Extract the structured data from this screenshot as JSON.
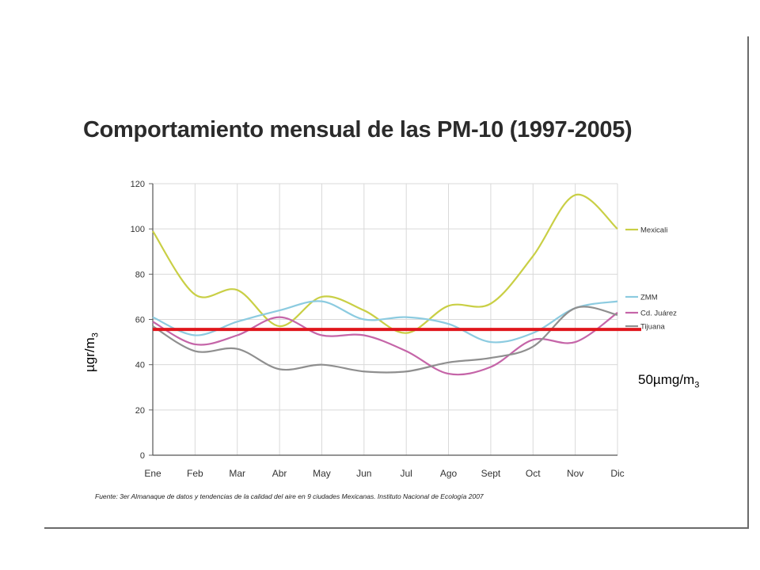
{
  "title": "Comportamiento mensual de las PM-10 (1997-2005)",
  "source": "Fuente: 3er Almanaque de datos y tendencias de la calidad del aire en 9 ciudades Mexicanas. Instituto Nacional de Ecología 2007",
  "ylabel": {
    "main": "µgr/m",
    "sub": "3"
  },
  "threshold_label": {
    "main": "50µmg/m",
    "sub": "3"
  },
  "colors": {
    "mexicali": "#c9cf45",
    "zmm": "#8ccbe0",
    "juarez": "#c565a8",
    "tijuana": "#8f8f8f",
    "threshold": "#e0161c"
  },
  "chart_data": {
    "type": "line",
    "title": "Comportamiento mensual de las PM-10 (1997-2005)",
    "xlabel": "",
    "ylabel": "µgr/m3",
    "categories": [
      "Ene",
      "Feb",
      "Mar",
      "Abr",
      "May",
      "Jun",
      "Jul",
      "Ago",
      "Sept",
      "Oct",
      "Nov",
      "Dic"
    ],
    "ylim": [
      0,
      120
    ],
    "yticks": [
      0,
      20,
      40,
      60,
      80,
      100,
      120
    ],
    "grid": true,
    "legend_position": "right",
    "series": [
      {
        "name": "Mexicali",
        "values": [
          99,
          71,
          73,
          57,
          70,
          64,
          54,
          66,
          67,
          88,
          115,
          100
        ]
      },
      {
        "name": "ZMM",
        "values": [
          61,
          53,
          59,
          64,
          68,
          60,
          61,
          58,
          50,
          54,
          65,
          68
        ]
      },
      {
        "name": "Cd. Juárez",
        "values": [
          59,
          49,
          53,
          61,
          53,
          53,
          46,
          36,
          39,
          51,
          50,
          63
        ]
      },
      {
        "name": "Tijuana",
        "values": [
          57,
          46,
          47,
          38,
          40,
          37,
          37,
          41,
          43,
          48,
          65,
          62
        ]
      }
    ],
    "threshold": {
      "value": 50,
      "label": "50µmg/m3"
    }
  }
}
